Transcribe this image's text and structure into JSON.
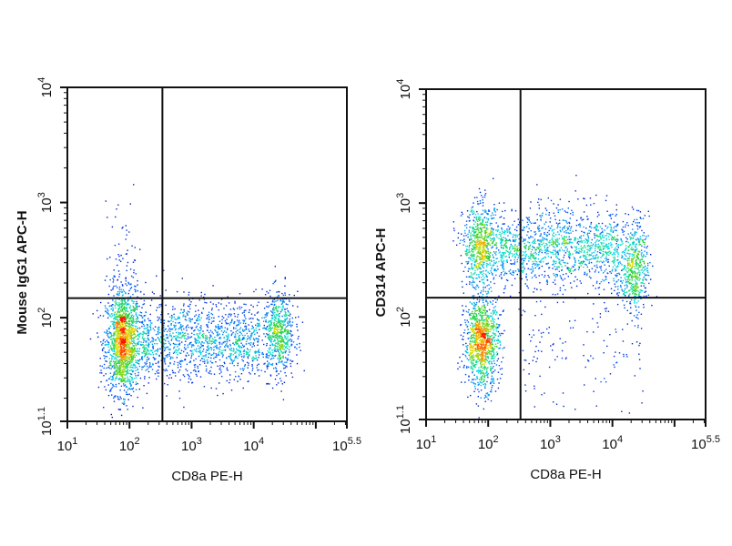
{
  "chart_data": [
    {
      "type": "scatter",
      "subtype": "flow-cytometry-pseudocolor-dot-plot",
      "xlabel": "CD8a PE-H",
      "ylabel": "Mouse IgG1 APC-H",
      "x_scale": "log",
      "y_scale": "log",
      "xlim_log10": [
        1,
        5.5
      ],
      "ylim_log10": [
        1.1,
        4
      ],
      "x_ticks": [
        {
          "exp": "1",
          "value": 1
        },
        {
          "exp": "2",
          "value": 2
        },
        {
          "exp": "3",
          "value": 3
        },
        {
          "exp": "4",
          "value": 4
        },
        {
          "exp": "5.5",
          "value": 5.5
        }
      ],
      "y_ticks": [
        {
          "exp": "1.1",
          "value": 1.1
        },
        {
          "exp": "2",
          "value": 2
        },
        {
          "exp": "3",
          "value": 3
        },
        {
          "exp": "4",
          "value": 4
        }
      ],
      "tick_base": "10",
      "quadrant_gate_log10": {
        "x": 2.53,
        "y": 2.17
      },
      "grid": false,
      "colormap": [
        "#0000a0",
        "#0050ff",
        "#00e0e0",
        "#30d030",
        "#e0e000",
        "#ff8000",
        "#ff1000"
      ],
      "populations_log10": [
        {
          "x_mean": 1.9,
          "x_sd": 0.14,
          "y_mean": 1.78,
          "y_sd": 0.22,
          "n": 1600
        },
        {
          "x_min": 2.2,
          "x_max": 4.1,
          "y_mean": 1.8,
          "y_sd": 0.17,
          "n": 1300
        },
        {
          "x_mean": 4.4,
          "x_sd": 0.13,
          "y_mean": 1.85,
          "y_sd": 0.18,
          "n": 650
        },
        {
          "x_mean": 1.9,
          "x_sd": 0.16,
          "y_mean": 2.4,
          "y_sd": 0.32,
          "n": 90
        }
      ]
    },
    {
      "type": "scatter",
      "subtype": "flow-cytometry-pseudocolor-dot-plot",
      "xlabel": "CD8a PE-H",
      "ylabel": "CD314 APC-H",
      "x_scale": "log",
      "y_scale": "log",
      "xlim_log10": [
        1,
        5.5
      ],
      "ylim_log10": [
        1.1,
        4
      ],
      "x_ticks": [
        {
          "exp": "1",
          "value": 1
        },
        {
          "exp": "2",
          "value": 2
        },
        {
          "exp": "3",
          "value": 3
        },
        {
          "exp": "4",
          "value": 4
        },
        {
          "exp": "5.5",
          "value": 5.5
        }
      ],
      "y_ticks": [
        {
          "exp": "1.1",
          "value": 1.1
        },
        {
          "exp": "2",
          "value": 2
        },
        {
          "exp": "3",
          "value": 3
        },
        {
          "exp": "4",
          "value": 4
        }
      ],
      "tick_base": "10",
      "quadrant_gate_log10": {
        "x": 2.52,
        "y": 2.17
      },
      "grid": false,
      "colormap": [
        "#0000a0",
        "#0050ff",
        "#00e0e0",
        "#30d030",
        "#e0e000",
        "#ff8000",
        "#ff1000"
      ],
      "populations_log10": [
        {
          "x_mean": 1.9,
          "x_sd": 0.14,
          "y_mean": 1.78,
          "y_sd": 0.2,
          "n": 1100
        },
        {
          "x_mean": 1.9,
          "x_sd": 0.15,
          "y_mean": 2.62,
          "y_sd": 0.18,
          "n": 750
        },
        {
          "x_min": 2.2,
          "x_max": 4.1,
          "y_mean": 2.6,
          "y_sd": 0.17,
          "n": 1300
        },
        {
          "x_mean": 4.35,
          "x_sd": 0.12,
          "y_mean": 2.45,
          "y_sd": 0.2,
          "n": 550
        },
        {
          "x_min": 2.5,
          "x_max": 4.5,
          "y_mean": 1.75,
          "y_sd": 0.3,
          "n": 150
        }
      ]
    }
  ]
}
